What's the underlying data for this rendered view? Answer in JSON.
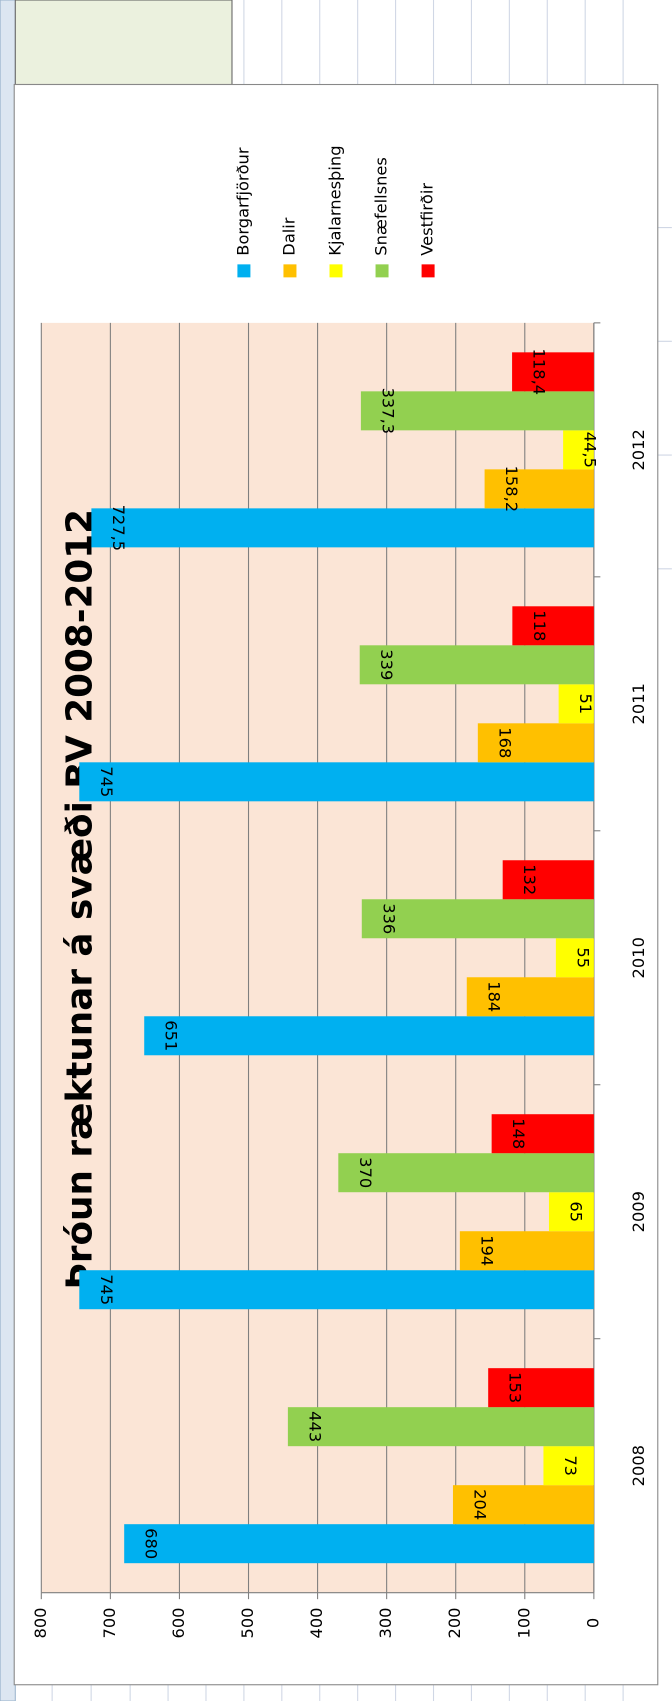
{
  "chart_data": {
    "type": "bar",
    "orientation": "horizontal-rotated",
    "title": "Þróun ræktunar á svæði BV 2008-2012",
    "categories": [
      "2008",
      "2009",
      "2010",
      "2011",
      "2012"
    ],
    "series": [
      {
        "name": "Borgarfjörður",
        "color": "#00b0f0",
        "values": [
          680,
          745,
          651,
          745,
          727.5
        ],
        "value_labels": [
          "680",
          "745",
          "651",
          "745",
          "727,5"
        ]
      },
      {
        "name": "Dalir",
        "color": "#ffc000",
        "values": [
          204,
          194,
          184,
          168,
          158.2
        ],
        "value_labels": [
          "204",
          "194",
          "184",
          "168",
          "158,2"
        ]
      },
      {
        "name": "Kjalarnesþing",
        "color": "#ffff00",
        "values": [
          73,
          65,
          55,
          51,
          44.5
        ],
        "value_labels": [
          "73",
          "65",
          "55",
          "51",
          "44,5"
        ]
      },
      {
        "name": "Snæfellsnes",
        "color": "#92d050",
        "values": [
          443,
          370,
          336,
          339,
          337.3
        ],
        "value_labels": [
          "443",
          "370",
          "336",
          "339",
          "337,3"
        ]
      },
      {
        "name": "Vestfirðir",
        "color": "#ff0000",
        "values": [
          153,
          148,
          132,
          118,
          118.4
        ],
        "value_labels": [
          "153",
          "148",
          "132",
          "118",
          "118,4"
        ]
      }
    ],
    "ylim": [
      0,
      800
    ],
    "yticks": [
      0,
      100,
      200,
      300,
      400,
      500,
      600,
      700,
      800
    ],
    "grid": true
  }
}
